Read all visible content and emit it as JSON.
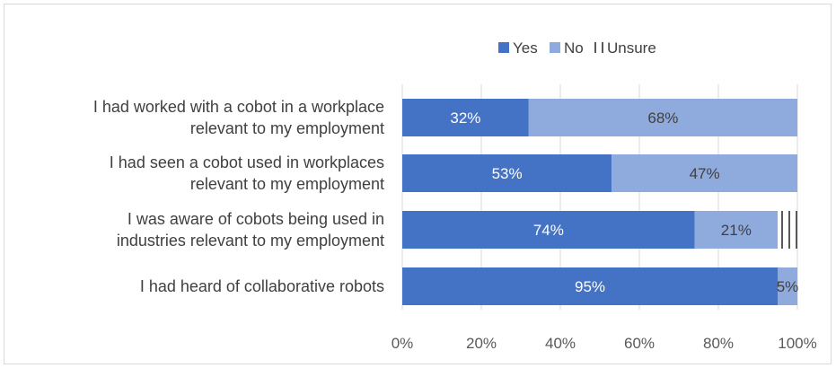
{
  "chart_data": {
    "type": "bar",
    "orientation": "horizontal",
    "stacked": "percent",
    "title": "",
    "xlabel": "",
    "ylabel": "",
    "xlim": [
      0,
      100
    ],
    "x_ticks": [
      "0%",
      "20%",
      "40%",
      "60%",
      "80%",
      "100%"
    ],
    "grid": "vertical",
    "legend_position": "top",
    "categories": [
      [
        "I had worked with a cobot in a workplace",
        "relevant to my employment"
      ],
      [
        "I had seen a cobot used in workplaces",
        "relevant to my employment"
      ],
      [
        "I was aware of cobots being used in",
        "industries relevant to my employment"
      ],
      [
        "I had heard of collaborative robots"
      ]
    ],
    "series": [
      {
        "name": "Yes",
        "color": "#4472c4",
        "pattern": "solid",
        "values": [
          32,
          53,
          74,
          95
        ],
        "labels": [
          "32%",
          "53%",
          "74%",
          "95%"
        ]
      },
      {
        "name": "No",
        "color": "#8faadc",
        "pattern": "solid",
        "values": [
          68,
          47,
          21,
          5
        ],
        "labels": [
          "68%",
          "47%",
          "21%",
          "5%"
        ]
      },
      {
        "name": "Unsure",
        "color": "#595959",
        "pattern": "vertical-lines",
        "values": [
          0,
          0,
          5,
          0
        ],
        "labels": [
          "",
          "",
          "",
          ""
        ]
      }
    ]
  }
}
